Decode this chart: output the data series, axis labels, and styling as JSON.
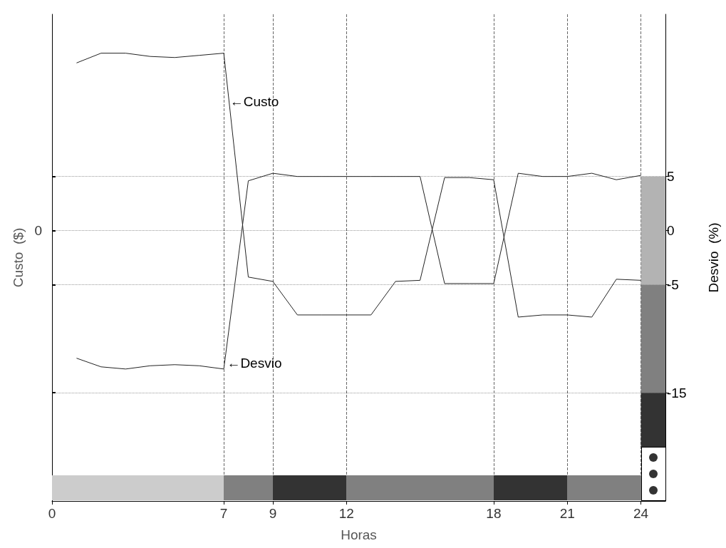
{
  "chart_data": {
    "type": "line",
    "xlabel": "Horas",
    "ylabel": "Custo  ($)",
    "y2label": "Desvio  (%)",
    "xlim": [
      0,
      25
    ],
    "xticks": [
      0,
      7,
      9,
      12,
      18,
      21,
      24
    ],
    "y2lim": [
      -25,
      20
    ],
    "y2ticks": [
      5,
      0,
      -5,
      -15
    ],
    "x": [
      1,
      2,
      3,
      4,
      5,
      6,
      7,
      8,
      9,
      10,
      11,
      12,
      13,
      14,
      15,
      16,
      17,
      18,
      19,
      20,
      21,
      22,
      23,
      24
    ],
    "series": [
      {
        "color": "#222222",
        "axis": "y2",
        "values": [
          15.5,
          16.4,
          16.4,
          16.1,
          16.0,
          16.2,
          16.4,
          -4.3,
          -4.7,
          -7.8,
          -7.8,
          -7.8,
          -7.8,
          -4.7,
          -4.6,
          4.9,
          4.9,
          4.7,
          -8.0,
          -7.8,
          -7.8,
          -8.0,
          -4.5,
          -4.6
        ]
      },
      {
        "color": "#222222",
        "axis": "y2",
        "values": [
          -11.8,
          -12.6,
          -12.8,
          -12.5,
          -12.4,
          -12.5,
          -12.8,
          4.6,
          5.3,
          5.0,
          5.0,
          5.0,
          5.0,
          5.0,
          5.0,
          -4.9,
          -4.9,
          -4.9,
          5.3,
          5.0,
          5.0,
          5.3,
          4.7,
          5.1
        ]
      }
    ],
    "bands": [
      {
        "axis": "y2",
        "from": -5,
        "to": 5,
        "color": "#b3b3b3"
      },
      {
        "axis": "y2",
        "from": -15,
        "to": -5,
        "color": "#808080"
      },
      {
        "axis": "y2",
        "from": -20,
        "to": -15,
        "color": "#333333"
      }
    ],
    "annotations": [
      "←Custo",
      "←Desvio",
      "0"
    ],
    "grid": true,
    "marker": "none",
    "line_style": "solid"
  }
}
